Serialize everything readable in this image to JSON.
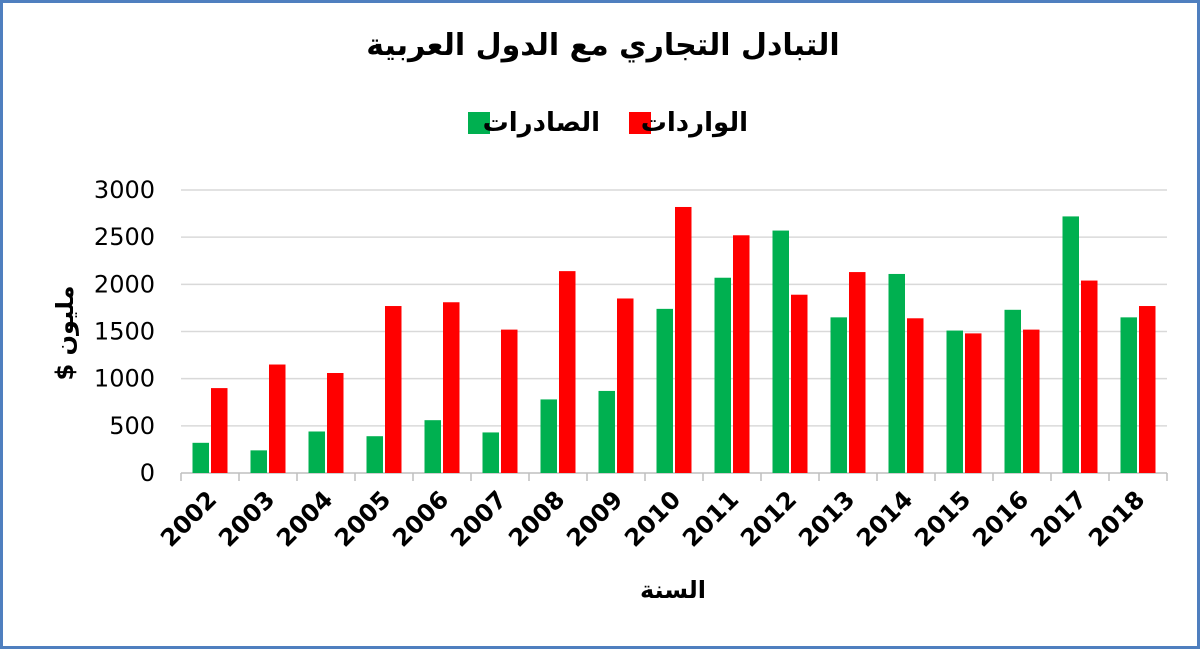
{
  "chart_data": {
    "type": "bar",
    "title": "التبادل التجاري مع الدول العربية",
    "xlabel": "السنة",
    "ylabel": "$ مليون",
    "ylim": [
      0,
      3000
    ],
    "yticks": [
      0,
      500,
      1000,
      1500,
      2000,
      2500,
      3000
    ],
    "grid": true,
    "legend_position": "top",
    "categories": [
      "2002",
      "2003",
      "2004",
      "2005",
      "2006",
      "2007",
      "2008",
      "2009",
      "2010",
      "2011",
      "2012",
      "2013",
      "2014",
      "2015",
      "2016",
      "2017",
      "2018"
    ],
    "series": [
      {
        "name": "الصادرات",
        "color": "#00b050",
        "values": [
          320,
          240,
          440,
          390,
          560,
          430,
          780,
          870,
          1740,
          2070,
          2570,
          1650,
          2110,
          1510,
          1730,
          2720,
          1650
        ]
      },
      {
        "name": "الواردات",
        "color": "#ff0000",
        "values": [
          900,
          1150,
          1060,
          1770,
          1810,
          1520,
          2140,
          1850,
          2820,
          2520,
          1890,
          2130,
          1640,
          1480,
          1520,
          2040,
          1770
        ]
      }
    ]
  }
}
